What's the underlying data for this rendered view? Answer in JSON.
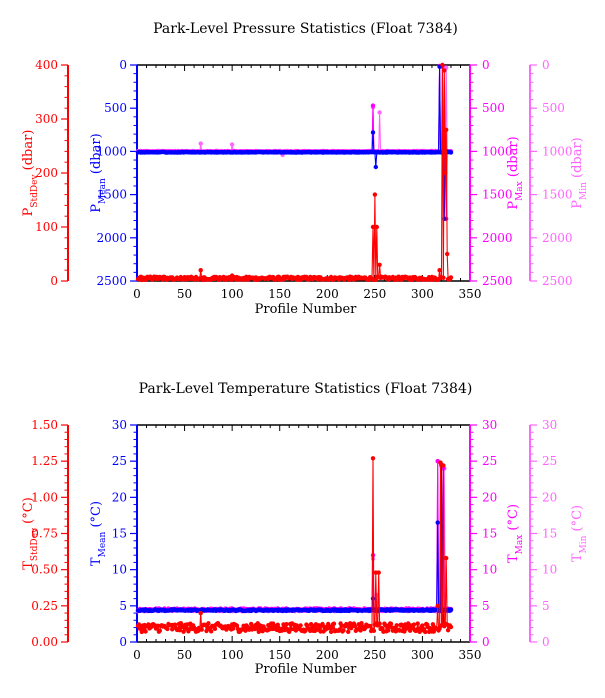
{
  "colors": {
    "red": "#ff0000",
    "blue": "#0000ff",
    "magenta": "#ff00ff",
    "pink": "#ff66ff"
  },
  "chart_data": [
    {
      "type": "scatter",
      "title": "Park-Level Pressure Statistics (Float 7384)",
      "xlabel": "Profile Number",
      "xlim": [
        0,
        350
      ],
      "xticks": [
        "0",
        "50",
        "100",
        "150",
        "200",
        "250",
        "300",
        "350"
      ],
      "axes": [
        {
          "key": "std",
          "label_main": "P",
          "label_sub": "StdDev",
          "label_unit": " (dbar)",
          "lim": [
            0,
            400
          ],
          "inverted": false,
          "ticks": [
            "0",
            "100",
            "200",
            "300",
            "400"
          ],
          "color": "#ff0000"
        },
        {
          "key": "mean",
          "label_main": "P",
          "label_sub": "Mean",
          "label_unit": " (dbar)",
          "lim": [
            0,
            2500
          ],
          "inverted": true,
          "ticks": [
            "0",
            "500",
            "1000",
            "1500",
            "2000",
            "2500"
          ],
          "color": "#0000ff"
        },
        {
          "key": "max",
          "label_main": "P",
          "label_sub": "Max",
          "label_unit": " (dbar)",
          "lim": [
            0,
            2500
          ],
          "inverted": true,
          "ticks": [
            "0",
            "500",
            "1000",
            "1500",
            "2000",
            "2500"
          ],
          "color": "#ff00ff"
        },
        {
          "key": "min",
          "label_main": "P",
          "label_sub": "Min",
          "label_unit": " (dbar)",
          "lim": [
            0,
            2500
          ],
          "inverted": true,
          "ticks": [
            "0",
            "500",
            "1000",
            "1500",
            "2000",
            "2500"
          ],
          "color": "#ff66ff"
        }
      ],
      "series": [
        {
          "axis": "min",
          "base": 1000,
          "noise": 5,
          "spikes": [
            [
              67,
              910
            ],
            [
              100,
              920
            ],
            [
              153,
              1040
            ],
            [
              248,
              490
            ],
            [
              255,
              550
            ],
            [
              318,
              20
            ],
            [
              325,
              30
            ]
          ]
        },
        {
          "axis": "max",
          "base": 1005,
          "noise": 5,
          "spikes": [
            [
              248,
              470
            ],
            [
              250,
              1000
            ],
            [
              318,
              10
            ],
            [
              321,
              20
            ],
            [
              325,
              1780
            ]
          ]
        },
        {
          "axis": "mean",
          "base": 1010,
          "noise": 4,
          "spikes": [
            [
              248,
              780
            ],
            [
              251,
              1180
            ],
            [
              318,
              20
            ],
            [
              323,
              1780
            ],
            [
              326,
              1000
            ]
          ]
        },
        {
          "axis": "std",
          "base": 5,
          "noise": 3,
          "spikes": [
            [
              67,
              20
            ],
            [
              100,
              10
            ],
            [
              248,
              100
            ],
            [
              250,
              160
            ],
            [
              252,
              100
            ],
            [
              255,
              30
            ],
            [
              318,
              20
            ],
            [
              321,
              400
            ],
            [
              323,
              390
            ],
            [
              324,
              200
            ],
            [
              325,
              280
            ],
            [
              326,
              50
            ]
          ]
        }
      ]
    },
    {
      "type": "scatter",
      "title": "Park-Level Temperature Statistics (Float 7384)",
      "xlabel": "Profile Number",
      "xlim": [
        0,
        350
      ],
      "xticks": [
        "0",
        "50",
        "100",
        "150",
        "200",
        "250",
        "300",
        "350"
      ],
      "axes": [
        {
          "key": "std",
          "label_main": "T",
          "label_sub": "StdDev",
          "label_unit": " (°C)",
          "lim": [
            0,
            1.5
          ],
          "inverted": false,
          "ticks": [
            "0.00",
            "0.25",
            "0.50",
            "0.75",
            "1.00",
            "1.25",
            "1.50"
          ],
          "color": "#ff0000"
        },
        {
          "key": "mean",
          "label_main": "T",
          "label_sub": "Mean",
          "label_unit": " (°C)",
          "lim": [
            0,
            30
          ],
          "inverted": false,
          "ticks": [
            "0",
            "5",
            "10",
            "15",
            "20",
            "25",
            "30"
          ],
          "color": "#0000ff"
        },
        {
          "key": "max",
          "label_main": "T",
          "label_sub": "Max",
          "label_unit": " (°C)",
          "lim": [
            0,
            30
          ],
          "inverted": false,
          "ticks": [
            "0",
            "5",
            "10",
            "15",
            "20",
            "25",
            "30"
          ],
          "color": "#ff00ff"
        },
        {
          "key": "min",
          "label_main": "T",
          "label_sub": "Min",
          "label_unit": " (°C)",
          "lim": [
            0,
            30
          ],
          "inverted": false,
          "ticks": [
            "0",
            "5",
            "10",
            "15",
            "20",
            "25",
            "30"
          ],
          "color": "#ff66ff"
        }
      ],
      "series": [
        {
          "axis": "min",
          "base": 4.4,
          "noise": 0.15,
          "spikes": [
            [
              248,
              11.5
            ],
            [
              252,
              6.5
            ],
            [
              316,
              25.0
            ],
            [
              320,
              24.5
            ],
            [
              323,
              24.0
            ]
          ]
        },
        {
          "axis": "max",
          "base": 4.5,
          "noise": 0.15,
          "spikes": [
            [
              248,
              12.0
            ],
            [
              316,
              25.0
            ],
            [
              320,
              24.3
            ],
            [
              322,
              24.0
            ]
          ]
        },
        {
          "axis": "mean",
          "base": 4.4,
          "noise": 0.1,
          "spikes": [
            [
              248,
              6.0
            ],
            [
              316,
              16.5
            ],
            [
              320,
              24.5
            ],
            [
              322,
              3.0
            ]
          ]
        },
        {
          "axis": "std",
          "base": 0.1,
          "noise": 0.03,
          "spikes": [
            [
              67,
              0.2
            ],
            [
              248,
              1.27
            ],
            [
              251,
              0.48
            ],
            [
              254,
              0.48
            ],
            [
              316,
              0.25
            ],
            [
              319,
              1.24
            ],
            [
              322,
              1.22
            ],
            [
              325,
              0.58
            ],
            [
              326,
              0.12
            ]
          ]
        }
      ]
    }
  ]
}
